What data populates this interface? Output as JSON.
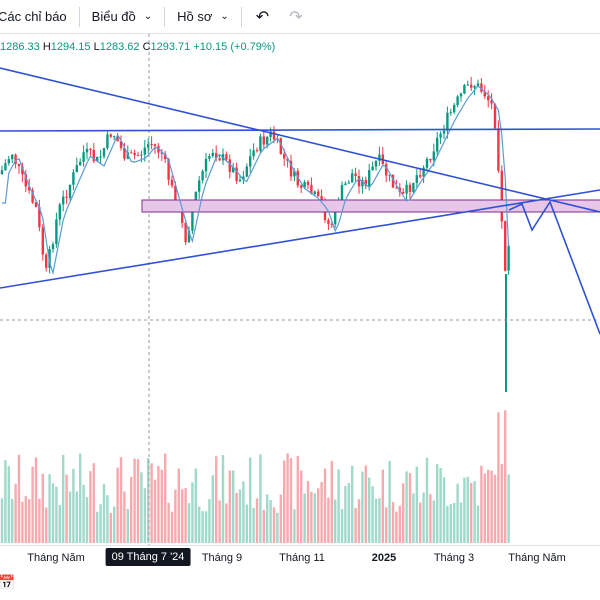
{
  "toolbar": {
    "indicators_label": "Các chỉ báo",
    "chart_label": "Biểu đồ",
    "profile_label": "Hồ sơ"
  },
  "ohlc": {
    "open_value": "1286.33",
    "high_key": "H",
    "high_value": "1294.15",
    "low_key": "L",
    "low_value": "1283.62",
    "close_key": "C",
    "close_value": "1293.71",
    "change": "+10.15 (+0.79%)"
  },
  "time_axis": {
    "ticks": [
      "Tháng Năm",
      "Tháng 9",
      "Tháng 11",
      "2025",
      "Tháng 3",
      "Tháng Năm"
    ],
    "crosshair_label": "09 Tháng 7 '24"
  },
  "colors": {
    "up": "#089981",
    "down": "#f23645",
    "trendline": "#2f51d6",
    "ma": "#5b9bd5",
    "zone_fill": "#e8c6ea",
    "zone_border": "#7b2c8f"
  },
  "icons": {
    "undo": "undo-icon",
    "redo": "redo-icon",
    "dropdown": "chevron-down-icon",
    "calendar": "calendar-icon"
  }
}
